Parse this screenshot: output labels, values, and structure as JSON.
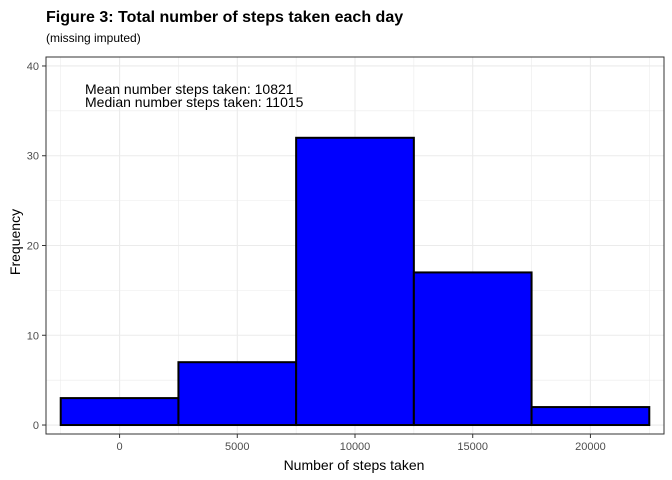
{
  "chart_data": {
    "type": "bar",
    "title": "Figure 3: Total number of steps taken each day",
    "subtitle": "(missing imputed)",
    "xlabel": "Number of steps taken",
    "ylabel": "Frequency",
    "bins": [
      {
        "x_start": -2500,
        "x_end": 2500,
        "value": 3
      },
      {
        "x_start": 2500,
        "x_end": 7500,
        "value": 7
      },
      {
        "x_start": 7500,
        "x_end": 12500,
        "value": 32
      },
      {
        "x_start": 12500,
        "x_end": 17500,
        "value": 17
      },
      {
        "x_start": 17500,
        "x_end": 22500,
        "value": 2
      }
    ],
    "xlim": [
      -3125,
      23125
    ],
    "ylim": [
      -1,
      41
    ],
    "x_ticks": [
      0,
      5000,
      10000,
      15000,
      20000
    ],
    "y_ticks": [
      0,
      10,
      20,
      30,
      40
    ],
    "annotations": [
      "Mean number steps taken: 10821",
      "Median number steps taken: 11015"
    ],
    "bar_fill": "#0000ff",
    "bar_stroke": "#000000",
    "panel_border": "#333333",
    "grid_color": "#ebebeb",
    "grid": true
  }
}
